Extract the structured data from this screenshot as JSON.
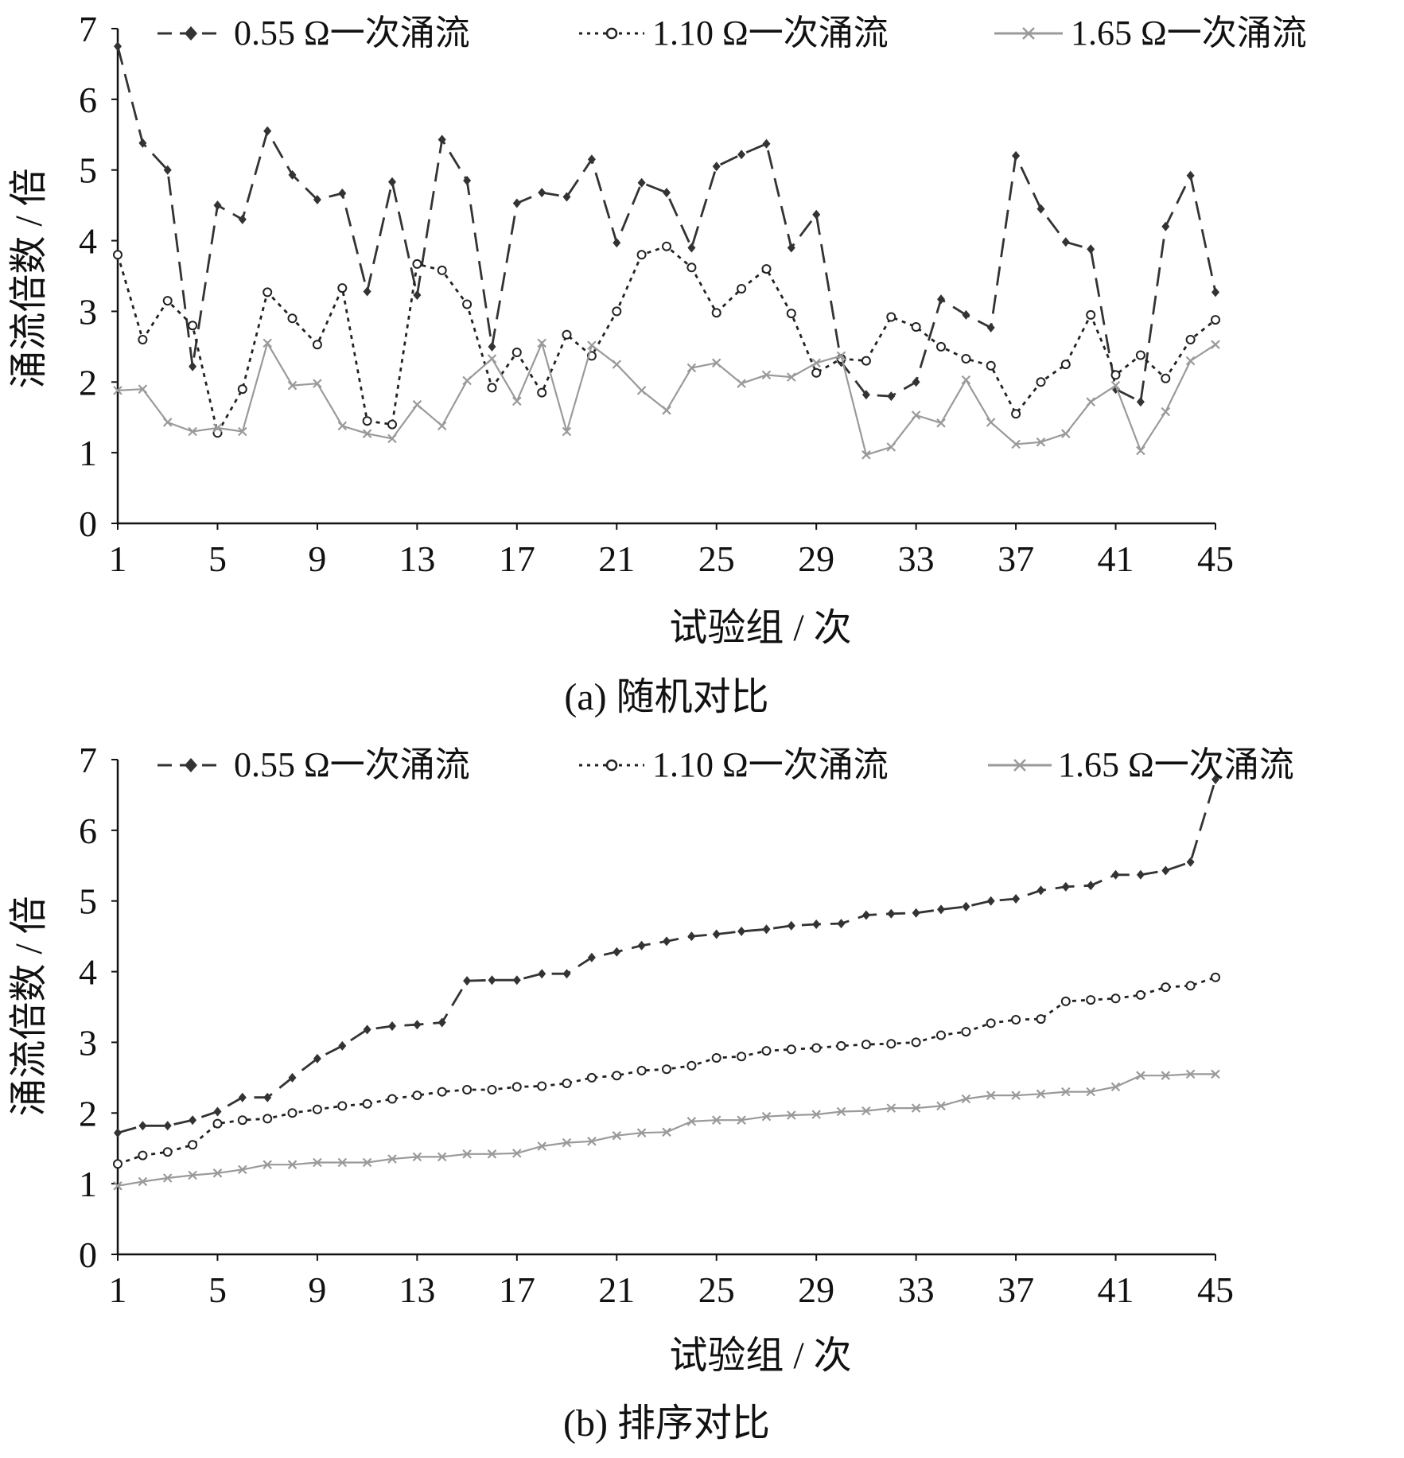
{
  "chart_data": [
    {
      "type": "line",
      "caption": "(a)  随机对比",
      "xlabel": "试验组 / 次",
      "ylabel": "涌流倍数 / 倍",
      "xlim": [
        1,
        45
      ],
      "ylim": [
        0,
        7
      ],
      "xticks": [
        1,
        5,
        9,
        13,
        17,
        21,
        25,
        29,
        33,
        37,
        41,
        45
      ],
      "yticks": [
        0,
        1,
        2,
        3,
        4,
        5,
        6,
        7
      ],
      "legend_position": "top",
      "grid": false,
      "x": [
        1,
        2,
        3,
        4,
        5,
        6,
        7,
        8,
        9,
        10,
        11,
        12,
        13,
        14,
        15,
        16,
        17,
        18,
        19,
        20,
        21,
        22,
        23,
        24,
        25,
        26,
        27,
        28,
        29,
        30,
        31,
        32,
        33,
        34,
        35,
        36,
        37,
        38,
        39,
        40,
        41,
        42,
        43,
        44,
        45
      ],
      "series": [
        {
          "name": "0.55 Ω一次涌流",
          "style": "dash",
          "marker": "diamond",
          "color": "#333333",
          "values": [
            6.75,
            5.38,
            5.0,
            2.22,
            4.5,
            4.3,
            5.55,
            4.93,
            4.58,
            4.67,
            3.28,
            4.83,
            3.23,
            5.43,
            4.85,
            2.5,
            4.53,
            4.68,
            4.62,
            5.15,
            3.97,
            4.82,
            4.68,
            3.9,
            5.05,
            5.22,
            5.37,
            3.9,
            4.37,
            2.28,
            1.82,
            1.8,
            2.0,
            3.17,
            2.95,
            2.77,
            5.2,
            4.45,
            3.98,
            3.88,
            1.9,
            1.72,
            4.2,
            4.92,
            3.27
          ]
        },
        {
          "name": "1.10 Ω一次涌流",
          "style": "dot",
          "marker": "circle",
          "color": "#222222",
          "values": [
            3.8,
            2.6,
            3.15,
            2.8,
            1.28,
            1.9,
            3.27,
            2.9,
            2.53,
            3.33,
            1.45,
            1.4,
            3.67,
            3.58,
            3.1,
            1.92,
            2.42,
            1.85,
            2.67,
            2.37,
            3.0,
            3.8,
            3.92,
            3.62,
            2.98,
            3.32,
            3.6,
            2.97,
            2.13,
            2.33,
            2.3,
            2.92,
            2.78,
            2.5,
            2.33,
            2.23,
            1.55,
            2.0,
            2.25,
            2.95,
            2.1,
            2.38,
            2.05,
            2.6,
            2.88
          ]
        },
        {
          "name": "1.65 Ω一次涌流",
          "style": "solid",
          "marker": "x",
          "color": "#9a9a9a",
          "values": [
            1.88,
            1.9,
            1.43,
            1.3,
            1.35,
            1.3,
            2.55,
            1.95,
            1.98,
            1.38,
            1.27,
            1.2,
            1.68,
            1.38,
            2.02,
            2.33,
            1.73,
            2.55,
            1.3,
            2.52,
            2.25,
            1.88,
            1.6,
            2.2,
            2.27,
            1.98,
            2.1,
            2.07,
            2.27,
            2.37,
            0.97,
            1.08,
            1.53,
            1.42,
            2.03,
            1.43,
            1.12,
            1.15,
            1.27,
            1.72,
            1.95,
            1.03,
            1.58,
            2.3,
            2.53
          ]
        }
      ]
    },
    {
      "type": "line",
      "caption": "(b)  排序对比",
      "xlabel": "试验组 / 次",
      "ylabel": "涌流倍数 / 倍",
      "xlim": [
        1,
        45
      ],
      "ylim": [
        0,
        7
      ],
      "xticks": [
        1,
        5,
        9,
        13,
        17,
        21,
        25,
        29,
        33,
        37,
        41,
        45
      ],
      "yticks": [
        0,
        1,
        2,
        3,
        4,
        5,
        6,
        7
      ],
      "legend_position": "top",
      "grid": false,
      "x": [
        1,
        2,
        3,
        4,
        5,
        6,
        7,
        8,
        9,
        10,
        11,
        12,
        13,
        14,
        15,
        16,
        17,
        18,
        19,
        20,
        21,
        22,
        23,
        24,
        25,
        26,
        27,
        28,
        29,
        30,
        31,
        32,
        33,
        34,
        35,
        36,
        37,
        38,
        39,
        40,
        41,
        42,
        43,
        44,
        45
      ],
      "series": [
        {
          "name": "0.55 Ω一次涌流",
          "style": "dash",
          "marker": "diamond",
          "color": "#333333",
          "values": [
            1.72,
            1.82,
            1.82,
            1.9,
            2.02,
            2.22,
            2.22,
            2.5,
            2.77,
            2.95,
            3.18,
            3.23,
            3.25,
            3.28,
            3.87,
            3.88,
            3.88,
            3.97,
            3.97,
            4.2,
            4.28,
            4.37,
            4.43,
            4.5,
            4.53,
            4.57,
            4.6,
            4.65,
            4.67,
            4.68,
            4.8,
            4.82,
            4.83,
            4.88,
            4.92,
            5.0,
            5.03,
            5.15,
            5.2,
            5.22,
            5.37,
            5.37,
            5.43,
            5.55,
            6.72
          ]
        },
        {
          "name": "1.10 Ω一次涌流",
          "style": "dot",
          "marker": "circle",
          "color": "#222222",
          "values": [
            1.28,
            1.4,
            1.45,
            1.55,
            1.85,
            1.9,
            1.92,
            2.0,
            2.05,
            2.1,
            2.13,
            2.2,
            2.25,
            2.3,
            2.33,
            2.33,
            2.37,
            2.38,
            2.42,
            2.5,
            2.53,
            2.6,
            2.62,
            2.67,
            2.78,
            2.8,
            2.88,
            2.9,
            2.92,
            2.95,
            2.97,
            2.98,
            3.0,
            3.1,
            3.15,
            3.27,
            3.32,
            3.33,
            3.58,
            3.6,
            3.62,
            3.67,
            3.78,
            3.8,
            3.92
          ]
        },
        {
          "name": "1.65 Ω一次涌流",
          "style": "solid",
          "marker": "x",
          "color": "#9a9a9a",
          "values": [
            0.97,
            1.03,
            1.08,
            1.12,
            1.15,
            1.2,
            1.27,
            1.27,
            1.3,
            1.3,
            1.3,
            1.35,
            1.38,
            1.38,
            1.42,
            1.42,
            1.43,
            1.53,
            1.58,
            1.6,
            1.68,
            1.72,
            1.73,
            1.88,
            1.9,
            1.9,
            1.95,
            1.97,
            1.98,
            2.02,
            2.03,
            2.07,
            2.07,
            2.1,
            2.2,
            2.25,
            2.25,
            2.27,
            2.3,
            2.3,
            2.37,
            2.53,
            2.53,
            2.55,
            2.55
          ]
        }
      ]
    }
  ]
}
